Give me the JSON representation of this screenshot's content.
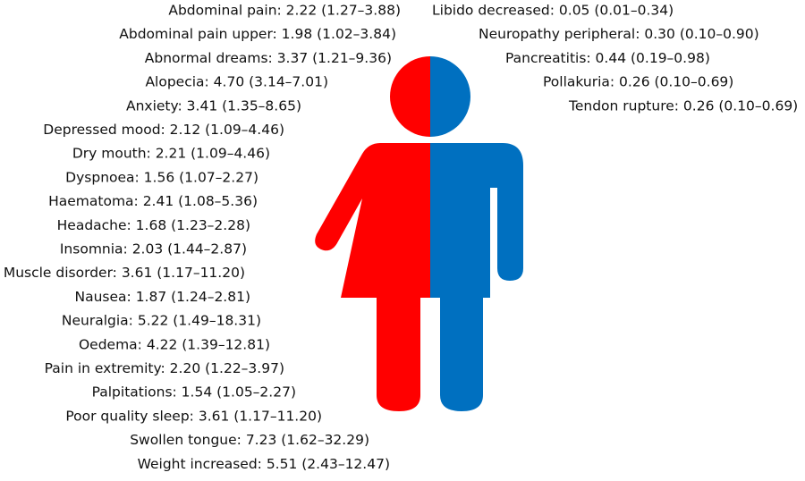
{
  "left_items": [
    "Abdominal pain: 2.22 (1.27–3.88)",
    "Abdominal pain upper: 1.98 (1.02–3.84)",
    "Abnormal dreams: 3.37 (1.21–9.36)",
    "Alopecia: 4.70 (3.14–7.01)",
    "Anxiety: 3.41 (1.35–8.65)",
    "Depressed mood: 2.12 (1.09–4.46)",
    "Dry mouth: 2.21 (1.09–4.46)",
    "Dyspnoea: 1.56 (1.07–2.27)",
    "Haematoma: 2.41 (1.08–5.36)",
    "Headache: 1.68 (1.23–2.28)",
    "Insomnia: 2.03 (1.44–2.87)",
    "Muscle disorder: 3.61 (1.17–11.20)",
    "Nausea: 1.87 (1.24–2.81)",
    "Neuralgia: 5.22 (1.49–18.31)",
    "Oedema: 4.22 (1.39–12.81)",
    "Pain in extremity: 2.20 (1.22–3.97)",
    "Palpitations: 1.54 (1.05–2.27)",
    "Poor quality sleep: 3.61 (1.17–11.20)",
    "Swollen tongue: 7.23 (1.62–32.29)",
    "Weight increased: 5.51 (2.43–12.47)"
  ],
  "right_items": [
    "Libido decreased: 0.05 (0.01–0.34)",
    "Neuropathy peripheral: 0.30 (0.10–0.90)",
    "Pancreatitis: 0.44 (0.19–0.98)",
    "Pollakuria: 0.26 (0.10–0.69)",
    "Tendon rupture: 0.26 (0.10–0.69)"
  ]
}
